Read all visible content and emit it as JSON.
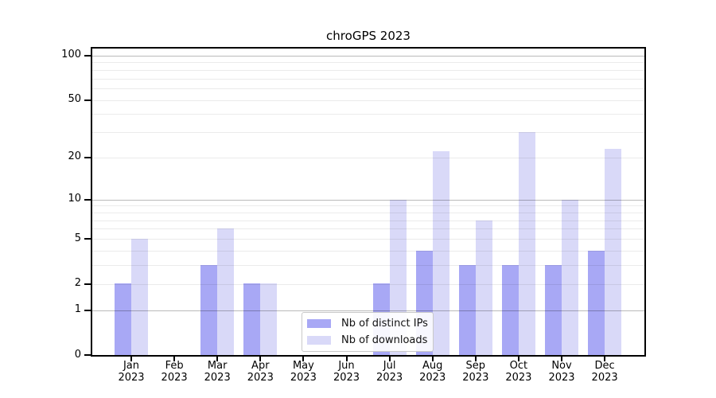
{
  "chart_data": {
    "type": "bar",
    "title": "chroGPS 2023",
    "x_categories": [
      "Jan",
      "Feb",
      "Mar",
      "Apr",
      "May",
      "Jun",
      "Jul",
      "Aug",
      "Sep",
      "Oct",
      "Nov",
      "Dec"
    ],
    "x_categories_year": "2023",
    "series": [
      {
        "name": "Nb of distinct IPs",
        "color": "#a8a8f5",
        "values": [
          2,
          0,
          3,
          2,
          0,
          0,
          2,
          4,
          3,
          3,
          3,
          4
        ]
      },
      {
        "name": "Nb of downloads",
        "color": "#d9d9f8",
        "values": [
          5,
          0,
          6,
          2,
          0,
          0,
          10,
          22,
          7,
          30,
          10,
          23
        ]
      }
    ],
    "xlabel": "",
    "ylabel": "",
    "y_scale": "log1p",
    "ylim": [
      0,
      113
    ],
    "y_tick_values": [
      100,
      50,
      20,
      10,
      5,
      2,
      1,
      0
    ],
    "y_tick_labels": [
      "100",
      "50",
      "20",
      "10",
      "5",
      "2",
      "1",
      "0"
    ],
    "gridlines_minor": [
      2,
      3,
      4,
      5,
      6,
      7,
      8,
      9,
      20,
      30,
      40,
      50,
      60,
      70,
      80,
      90
    ],
    "gridlines_major": [
      1,
      10,
      100
    ],
    "grid": "on",
    "legend_position": "bottom-center",
    "colors": {
      "axis": "#000000",
      "gridline_minor": "rgba(0,0,0,0.08)",
      "gridline_major": "rgba(0,0,0,0.27)"
    }
  }
}
